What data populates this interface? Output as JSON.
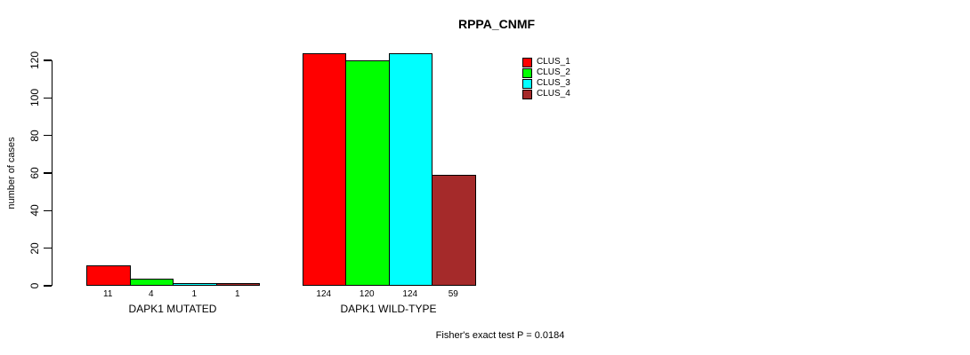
{
  "title": "RPPA_CNMF",
  "footer": "Fisher's exact test P = 0.0184",
  "chart_data": {
    "type": "bar",
    "title": "RPPA_CNMF",
    "ylabel": "number of cases",
    "xlabel": "",
    "categories": [
      "DAPK1 MUTATED",
      "DAPK1 WILD-TYPE"
    ],
    "series": [
      {
        "name": "CLUS_1",
        "color": "#ff0000",
        "values": [
          11,
          124
        ]
      },
      {
        "name": "CLUS_2",
        "color": "#00ff00",
        "values": [
          4,
          120
        ]
      },
      {
        "name": "CLUS_3",
        "color": "#00ffff",
        "values": [
          1,
          124
        ]
      },
      {
        "name": "CLUS_4",
        "color": "#a52a2a",
        "values": [
          1,
          59
        ]
      }
    ],
    "bar_value_labels": [
      [
        "11",
        "4",
        "1",
        "1"
      ],
      [
        "124",
        "120",
        "124",
        "59"
      ]
    ],
    "ylim": [
      0,
      120
    ],
    "yticks": [
      0,
      20,
      40,
      60,
      80,
      100,
      120
    ],
    "grid": false,
    "legend_position": "top-right",
    "legend_entries": [
      "CLUS_1",
      "CLUS_2",
      "CLUS_3",
      "CLUS_4"
    ],
    "annotation": "Fisher's exact test P = 0.0184"
  }
}
